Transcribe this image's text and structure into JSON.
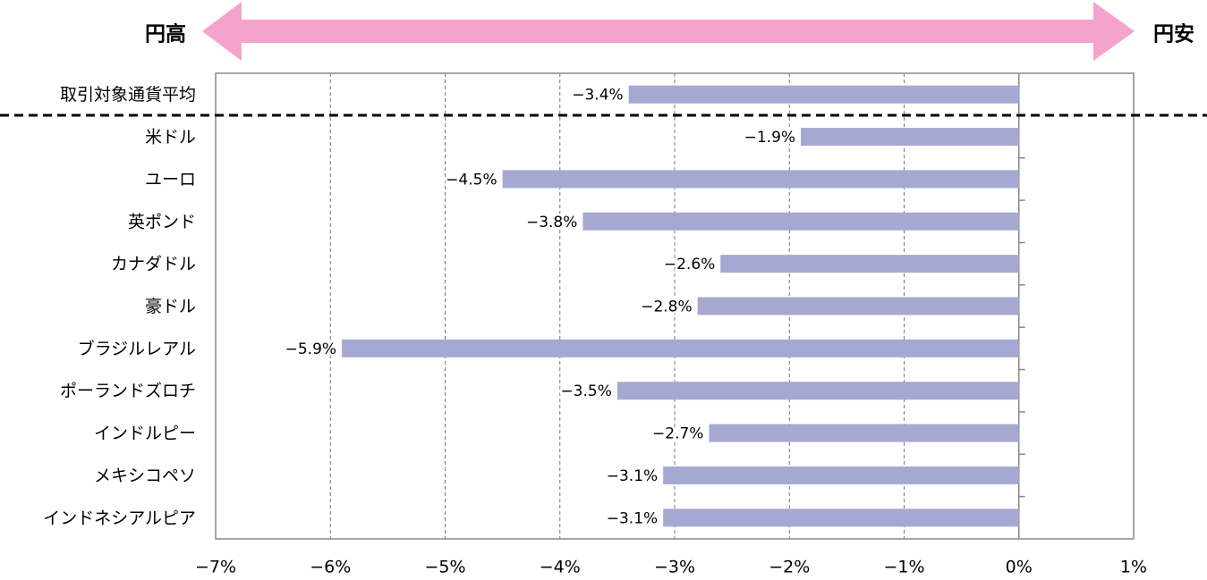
{
  "chart_data": {
    "type": "bar",
    "orientation": "horizontal",
    "left_label": "円高",
    "right_label": "円安",
    "categories": [
      "取引対象通貨平均",
      "米ドル",
      "ユーロ",
      "英ポンド",
      "カナダドル",
      "豪ドル",
      "ブラジルレアル",
      "ポーランドズロチ",
      "インドルピー",
      "メキシコペソ",
      "インドネシアルピア"
    ],
    "values": [
      -3.4,
      -1.9,
      -4.5,
      -3.8,
      -2.6,
      -2.8,
      -5.9,
      -3.5,
      -2.7,
      -3.1,
      -3.1
    ],
    "value_labels": [
      "−3.4%",
      "−1.9%",
      "−4.5%",
      "−3.8%",
      "−2.6%",
      "−2.8%",
      "−5.9%",
      "−3.5%",
      "−2.7%",
      "−3.1%",
      "−3.1%"
    ],
    "color": "#a5a9d1",
    "xlim": [
      -7,
      1
    ],
    "xticks": [
      {
        "value": -7,
        "label": "−7%"
      },
      {
        "value": -6,
        "label": "−6%"
      },
      {
        "value": -5,
        "label": "−5%"
      },
      {
        "value": -4,
        "label": "−4%"
      },
      {
        "value": -3,
        "label": "−3%"
      },
      {
        "value": -2,
        "label": "−2%"
      },
      {
        "value": -1,
        "label": "−1%"
      },
      {
        "value": 0,
        "label": "0%"
      },
      {
        "value": 1,
        "label": "1%"
      }
    ],
    "grid": true
  }
}
